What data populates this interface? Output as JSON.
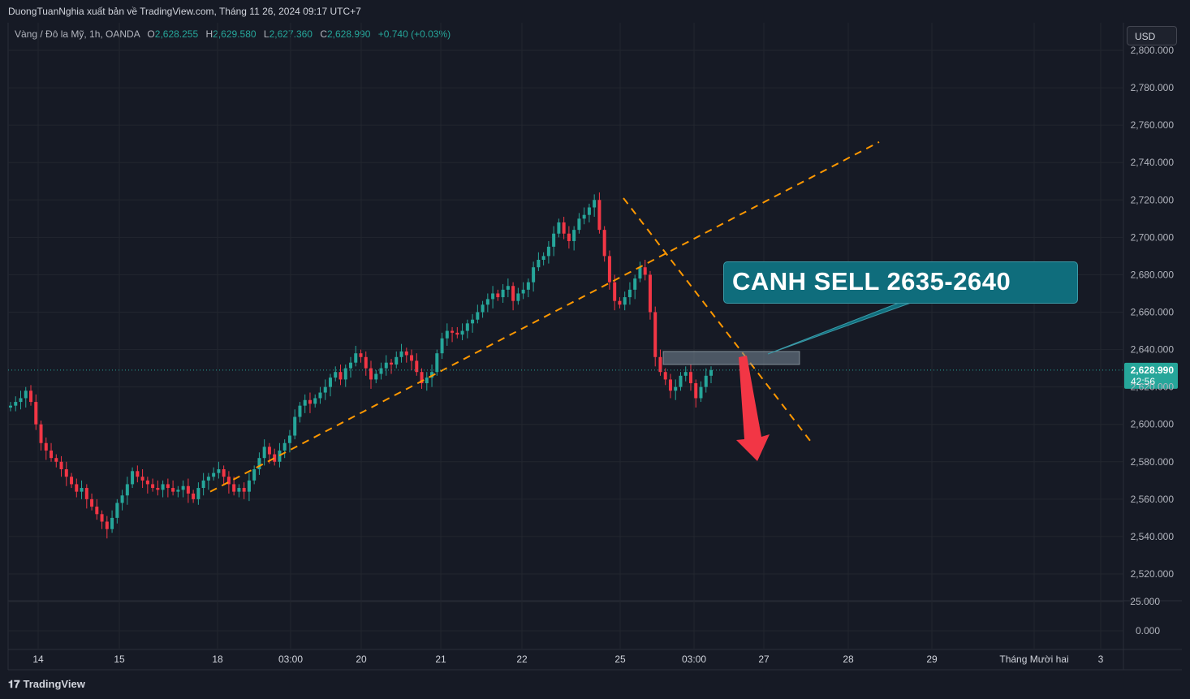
{
  "header": {
    "publisher": "DuongTuanNghia xuất bản về TradingView.com, Tháng 11 26, 2024 09:17 UTC+7"
  },
  "legend": {
    "symbol": "Vàng / Đô la Mỹ, 1h, OANDA",
    "o_label": "O",
    "o": "2,628.255",
    "h_label": "H",
    "h": "2,629.580",
    "l_label": "L",
    "l": "2,627.360",
    "c_label": "C",
    "c": "2,628.990",
    "change": "+0.740 (+0.03%)"
  },
  "currency": "USD",
  "footer": {
    "brand": "TradingView"
  },
  "annotation": {
    "text": "CANH SELL 2635-2640"
  },
  "colors": {
    "bg": "#161a25",
    "up": "#26a69a",
    "down": "#f23645",
    "trend": "#ff9800",
    "box": "#0f6d7c",
    "arrow": "#f23645"
  },
  "chart_data": {
    "type": "candlestick",
    "price_ticks": [
      "2,800.000",
      "2,780.000",
      "2,760.000",
      "2,740.000",
      "2,720.000",
      "2,700.000",
      "2,680.000",
      "2,660.000",
      "2,640.000",
      "2,620.000",
      "2,600.000",
      "2,580.000",
      "2,560.000",
      "2,540.000",
      "2,520.000"
    ],
    "price_tick_values": [
      2800,
      2780,
      2760,
      2740,
      2720,
      2700,
      2680,
      2660,
      2640,
      2620,
      2600,
      2580,
      2560,
      2540,
      2520
    ],
    "lower_pane_ticks": [
      "25.000",
      "0.000"
    ],
    "time_labels": [
      "14",
      "15",
      "18",
      "03:00",
      "20",
      "21",
      "22",
      "25",
      "03:00",
      "27",
      "28",
      "29",
      "Tháng Mười hai",
      "3"
    ],
    "ylim": [
      2514,
      2802
    ],
    "last_price": "2,628.990",
    "last_price_value": 2628.99,
    "countdown": "42:56",
    "closes": [
      2610,
      2612,
      2614,
      2618,
      2612,
      2600,
      2590,
      2586,
      2582,
      2580,
      2576,
      2572,
      2568,
      2564,
      2566,
      2560,
      2556,
      2552,
      2548,
      2544,
      2550,
      2558,
      2562,
      2568,
      2575,
      2572,
      2570,
      2568,
      2566,
      2565,
      2568,
      2566,
      2564,
      2565,
      2567,
      2563,
      2560,
      2566,
      2570,
      2572,
      2574,
      2576,
      2572,
      2568,
      2564,
      2566,
      2564,
      2570,
      2576,
      2582,
      2588,
      2584,
      2580,
      2586,
      2590,
      2594,
      2604,
      2610,
      2613,
      2611,
      2614,
      2617,
      2620,
      2625,
      2628,
      2624,
      2630,
      2633,
      2638,
      2636,
      2630,
      2624,
      2627,
      2630,
      2633,
      2632,
      2636,
      2639,
      2637,
      2634,
      2628,
      2622,
      2625,
      2628,
      2638,
      2646,
      2650,
      2649,
      2648,
      2650,
      2654,
      2656,
      2660,
      2664,
      2667,
      2670,
      2668,
      2672,
      2674,
      2666,
      2670,
      2672,
      2676,
      2684,
      2688,
      2690,
      2695,
      2702,
      2708,
      2702,
      2698,
      2704,
      2710,
      2712,
      2716,
      2720,
      2704,
      2690,
      2676,
      2666,
      2664,
      2668,
      2672,
      2678,
      2684,
      2680,
      2660,
      2636,
      2628,
      2624,
      2618,
      2620,
      2626,
      2628,
      2622,
      2614,
      2620,
      2626,
      2629
    ],
    "trendlines": [
      {
        "from": [
          "18",
          2564
        ],
        "to": [
          "28",
          2751
        ]
      },
      {
        "from": [
          "25",
          2721
        ],
        "to": [
          "27+",
          2589
        ]
      }
    ],
    "zone": {
      "low": 2632,
      "high": 2639
    },
    "target_arrow": {
      "to": 2582
    }
  }
}
